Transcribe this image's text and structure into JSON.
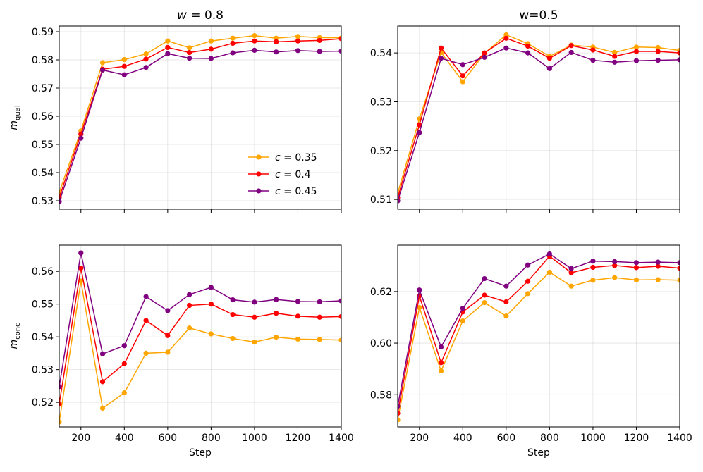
{
  "chart_data": [
    {
      "type": "line",
      "title_var": "w",
      "title_eq": " = 0.8",
      "ylabel_main": "m",
      "ylabel_sub": "qual",
      "xlabel": "",
      "xlim": [
        100,
        1400
      ],
      "ylim": [
        0.527,
        0.592
      ],
      "xticks": [
        200,
        400,
        600,
        800,
        1000,
        1200,
        1400
      ],
      "yticks": [
        0.53,
        0.54,
        0.55,
        0.56,
        0.57,
        0.58,
        0.59
      ],
      "show_x_tick_labels": false,
      "show_legend": true,
      "legend_location": "lower-right",
      "grid": true,
      "x": [
        100,
        200,
        300,
        400,
        500,
        600,
        700,
        800,
        900,
        1000,
        1100,
        1200,
        1300,
        1400
      ],
      "series": [
        {
          "name_var": "c",
          "name_val": " = 0.35",
          "color": "#FFA500",
          "values": [
            0.533,
            0.5548,
            0.579,
            0.5801,
            0.5821,
            0.5867,
            0.5843,
            0.5867,
            0.5877,
            0.5886,
            0.5877,
            0.5883,
            0.5879,
            0.5878
          ]
        },
        {
          "name_var": "c",
          "name_val": " = 0.4",
          "color": "#FF0000",
          "values": [
            0.5312,
            0.5537,
            0.5767,
            0.5777,
            0.5803,
            0.5844,
            0.5826,
            0.5838,
            0.5859,
            0.5867,
            0.5864,
            0.5867,
            0.5869,
            0.5875
          ]
        },
        {
          "name_var": "c",
          "name_val": " = 0.45",
          "color": "#800080",
          "values": [
            0.5297,
            0.5522,
            0.5764,
            0.5747,
            0.5773,
            0.5822,
            0.5806,
            0.5805,
            0.5825,
            0.5834,
            0.5828,
            0.5833,
            0.583,
            0.5831
          ]
        }
      ]
    },
    {
      "type": "line",
      "title_var": "",
      "title_eq": "w=0.5",
      "ylabel_main": "",
      "ylabel_sub": "",
      "xlabel": "",
      "xlim": [
        100,
        1400
      ],
      "ylim": [
        0.508,
        0.5455
      ],
      "xticks": [
        200,
        400,
        600,
        800,
        1000,
        1200,
        1400
      ],
      "yticks": [
        0.51,
        0.52,
        0.53,
        0.54
      ],
      "show_x_tick_labels": false,
      "show_legend": false,
      "grid": true,
      "x": [
        100,
        200,
        300,
        400,
        500,
        600,
        700,
        800,
        900,
        1000,
        1100,
        1200,
        1300,
        1400
      ],
      "series": [
        {
          "name_var": "c",
          "name_val": " = 0.35",
          "color": "#FFA500",
          "values": [
            0.5113,
            0.5265,
            0.5401,
            0.5341,
            0.5399,
            0.5437,
            0.5419,
            0.5393,
            0.5416,
            0.5412,
            0.5401,
            0.5412,
            0.5411,
            0.5405
          ]
        },
        {
          "name_var": "c",
          "name_val": " = 0.4",
          "color": "#FF0000",
          "values": [
            0.5104,
            0.5253,
            0.541,
            0.5353,
            0.54,
            0.543,
            0.5414,
            0.5389,
            0.5415,
            0.5406,
            0.5393,
            0.5403,
            0.5403,
            0.54
          ]
        },
        {
          "name_var": "c",
          "name_val": " = 0.45",
          "color": "#800080",
          "values": [
            0.5097,
            0.5237,
            0.5389,
            0.5376,
            0.5391,
            0.541,
            0.54,
            0.5368,
            0.5401,
            0.5385,
            0.5381,
            0.5384,
            0.5385,
            0.5386
          ]
        }
      ]
    },
    {
      "type": "line",
      "title_var": "",
      "title_eq": "",
      "ylabel_main": "m",
      "ylabel_sub": "conc",
      "xlabel": "Step",
      "xlim": [
        100,
        1400
      ],
      "ylim": [
        0.5125,
        0.568
      ],
      "xticks": [
        200,
        400,
        600,
        800,
        1000,
        1200,
        1400
      ],
      "yticks": [
        0.52,
        0.53,
        0.54,
        0.55,
        0.56
      ],
      "show_x_tick_labels": true,
      "show_legend": false,
      "grid": true,
      "x": [
        100,
        200,
        300,
        400,
        500,
        600,
        700,
        800,
        900,
        1000,
        1100,
        1200,
        1300,
        1400
      ],
      "series": [
        {
          "name_var": "c",
          "name_val": " = 0.35",
          "color": "#FFA500",
          "values": [
            0.514,
            0.557,
            0.5182,
            0.5229,
            0.535,
            0.5353,
            0.5427,
            0.5409,
            0.5395,
            0.5384,
            0.5399,
            0.5393,
            0.5392,
            0.539
          ]
        },
        {
          "name_var": "c",
          "name_val": " = 0.4",
          "color": "#FF0000",
          "values": [
            0.5195,
            0.561,
            0.5263,
            0.5318,
            0.545,
            0.5404,
            0.5496,
            0.55,
            0.5468,
            0.546,
            0.5472,
            0.5463,
            0.546,
            0.5462
          ]
        },
        {
          "name_var": "c",
          "name_val": " = 0.45",
          "color": "#800080",
          "values": [
            0.5248,
            0.5656,
            0.5348,
            0.5373,
            0.5523,
            0.548,
            0.5529,
            0.5551,
            0.5513,
            0.5506,
            0.5514,
            0.5508,
            0.5507,
            0.551
          ]
        }
      ]
    },
    {
      "type": "line",
      "title_var": "",
      "title_eq": "",
      "ylabel_main": "",
      "ylabel_sub": "",
      "xlabel": "Step",
      "xlim": [
        100,
        1400
      ],
      "ylim": [
        0.5675,
        0.638
      ],
      "xticks": [
        200,
        400,
        600,
        800,
        1000,
        1200,
        1400
      ],
      "yticks": [
        0.58,
        0.6,
        0.62
      ],
      "ytick_labels": [
        "0.58",
        "0.60",
        "0.62"
      ],
      "show_x_tick_labels": true,
      "show_legend": false,
      "grid": true,
      "x": [
        100,
        200,
        300,
        400,
        500,
        600,
        700,
        800,
        900,
        1000,
        1100,
        1200,
        1300,
        1400
      ],
      "series": [
        {
          "name_var": "c",
          "name_val": " = 0.35",
          "color": "#FFA500",
          "values": [
            0.5702,
            0.6138,
            0.5892,
            0.6086,
            0.6157,
            0.6105,
            0.6192,
            0.6275,
            0.6221,
            0.6244,
            0.6254,
            0.6245,
            0.6246,
            0.6244
          ]
        },
        {
          "name_var": "c",
          "name_val": " = 0.4",
          "color": "#FF0000",
          "values": [
            0.5728,
            0.6183,
            0.5924,
            0.6121,
            0.6186,
            0.616,
            0.624,
            0.6337,
            0.6273,
            0.6294,
            0.6301,
            0.6293,
            0.6298,
            0.6291
          ]
        },
        {
          "name_var": "c",
          "name_val": " = 0.45",
          "color": "#800080",
          "values": [
            0.5755,
            0.6206,
            0.5985,
            0.6135,
            0.625,
            0.6221,
            0.6303,
            0.6346,
            0.6289,
            0.6318,
            0.6316,
            0.6312,
            0.6314,
            0.6312
          ]
        }
      ]
    }
  ]
}
